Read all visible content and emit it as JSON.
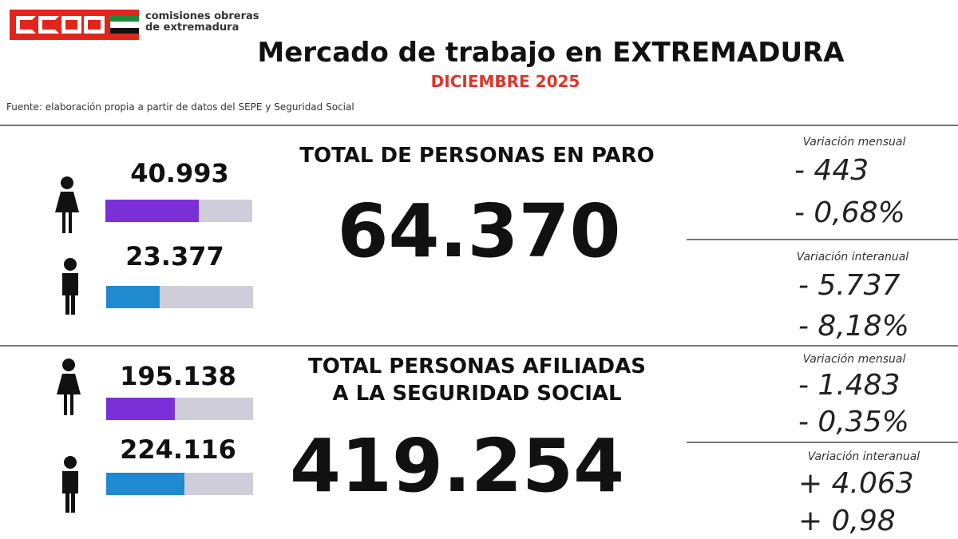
{
  "header": {
    "logo_text": "CCOO",
    "org_line1": "comisiones obreras",
    "org_line2": "de extremadura",
    "title": "Mercado de trabajo en EXTREMADURA",
    "subtitle": "DICIEMBRE 2025",
    "source": "Fuente: elaboración propia a partir de datos del SEPE y Seguridad Social"
  },
  "colors": {
    "brand": "#e1251b",
    "women": "#7b2fd6",
    "men": "#1f8ad0",
    "subtitle": "#e1352b"
  },
  "paro": {
    "heading": "TOTAL DE PERSONAS EN PARO",
    "total": "64.370",
    "women": {
      "value": "40.993",
      "share_pct": 63.7
    },
    "men": {
      "value": "23.377",
      "share_pct": 36.3
    },
    "monthly": {
      "label": "Variación mensual",
      "abs": "- 443",
      "pct": "- 0,68%"
    },
    "yearly": {
      "label": "Variación interanual",
      "abs": "- 5.737",
      "pct": "- 8,18%"
    }
  },
  "afiliadas": {
    "heading1": "TOTAL PERSONAS AFILIADAS",
    "heading2": "A LA SEGURIDAD SOCIAL",
    "total": "419.254",
    "women": {
      "value": "195.138",
      "share_pct": 46.5
    },
    "men": {
      "value": "224.116",
      "share_pct": 53.5
    },
    "monthly": {
      "label": "Variación mensual",
      "abs": "- 1.483",
      "pct": "- 0,35%"
    },
    "yearly": {
      "label": "Variación interanual",
      "abs": "+ 4.063",
      "pct": "+ 0,98"
    }
  }
}
